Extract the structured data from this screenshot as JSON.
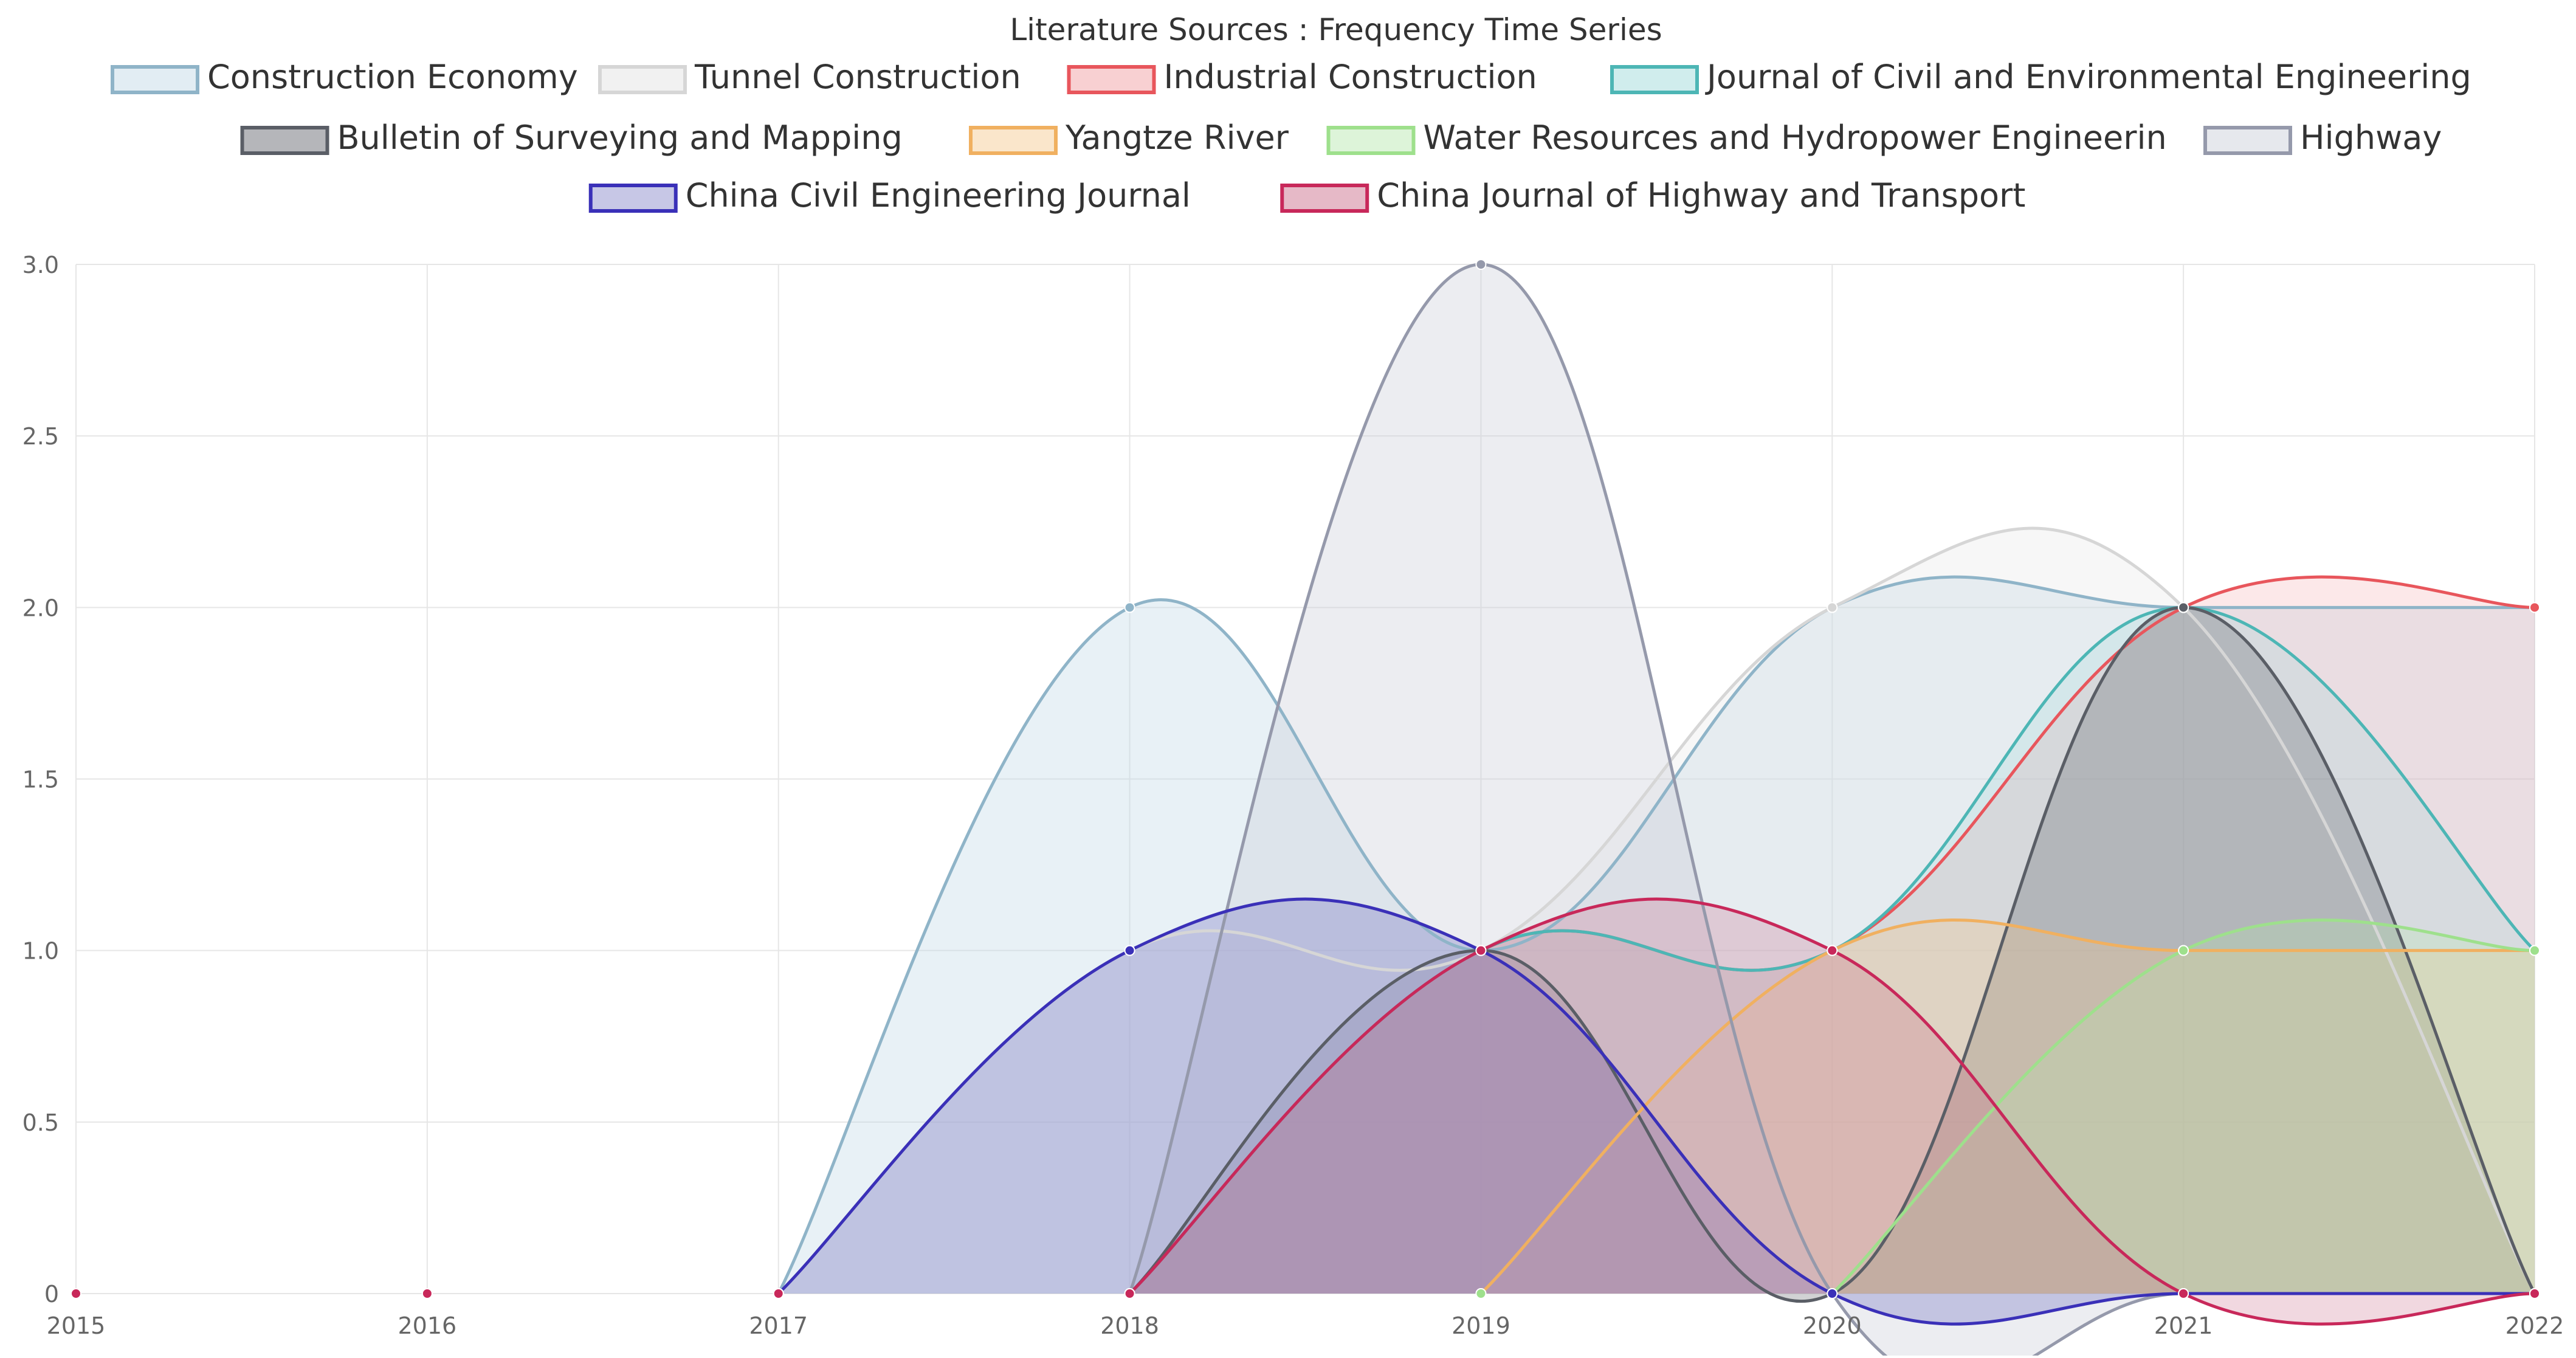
{
  "chart_data": {
    "type": "area",
    "title": "Literature Sources : Frequency Time Series",
    "xlabel": "",
    "ylabel": "",
    "ylim": [
      0,
      3
    ],
    "yticks": [
      "0",
      "0.5",
      "1.0",
      "1.5",
      "2.0",
      "2.5",
      "3.0"
    ],
    "categories": [
      "2015",
      "2016",
      "2017",
      "2018",
      "2019",
      "2020",
      "2021",
      "2022"
    ],
    "grid": true,
    "legend_position": "top",
    "series": [
      {
        "name": "Construction Economy",
        "values": [
          0,
          0,
          0,
          2,
          1,
          2,
          2,
          2
        ],
        "color": "#8fb4c8",
        "fill": "rgba(190,215,228,0.35)"
      },
      {
        "name": "Tunnel Construction",
        "values": [
          0,
          0,
          0,
          1,
          1,
          2,
          2,
          0
        ],
        "color": "#d6d6d6",
        "fill": "rgba(225,225,225,0.25)"
      },
      {
        "name": "Industrial Construction",
        "values": [
          0,
          0,
          0,
          0,
          1,
          1,
          2,
          2
        ],
        "color": "#e8565c",
        "fill": "rgba(240,150,155,0.22)"
      },
      {
        "name": "Journal of Civil and Environmental Engineering",
        "values": [
          0,
          0,
          0,
          0,
          1,
          1,
          2,
          1
        ],
        "color": "#4db6b5",
        "fill": "rgba(150,215,215,0.22)"
      },
      {
        "name": "Bulletin of Surveying and Mapping",
        "values": [
          0,
          0,
          0,
          0,
          1,
          0,
          2,
          0
        ],
        "color": "#5a5e66",
        "fill": "rgba(90,94,102,0.28)"
      },
      {
        "name": "Yangtze River",
        "values": [
          0,
          0,
          0,
          0,
          0,
          1,
          1,
          1
        ],
        "color": "#f0b060",
        "fill": "rgba(245,200,140,0.30)"
      },
      {
        "name": "Water Resources and Hydropower Engineerin",
        "values": [
          0,
          0,
          0,
          0,
          0,
          0,
          1,
          1
        ],
        "color": "#9ee08c",
        "fill": "rgba(180,230,170,0.25)"
      },
      {
        "name": "Highway",
        "values": [
          0,
          0,
          0,
          0,
          3,
          0,
          0,
          0
        ],
        "color": "#9599ab",
        "fill": "rgba(200,203,214,0.35)"
      },
      {
        "name": "China Civil Engineering Journal",
        "values": [
          0,
          0,
          0,
          1,
          1,
          0,
          0,
          0
        ],
        "color": "#3a30b8",
        "fill": "rgba(130,130,200,0.38)"
      },
      {
        "name": "China Journal of Highway and Transport",
        "values": [
          0,
          0,
          0,
          0,
          1,
          1,
          0,
          0
        ],
        "color": "#c8285a",
        "fill": "rgba(200,100,130,0.25)"
      }
    ]
  }
}
